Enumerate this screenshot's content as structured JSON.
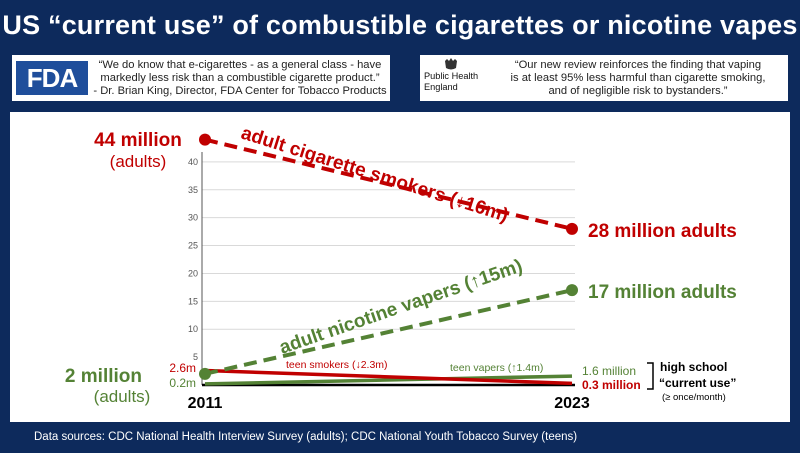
{
  "title": "US “current use” of combustible cigarettes or nicotine vapes",
  "quotes": {
    "fda": {
      "logo_text": "FDA",
      "line1": "“We do know that e-cigarettes - as a general class - have",
      "line2": "markedly less risk than a combustible cigarette product.”",
      "line3": "- Dr. Brian King, Director, FDA Center for Tobacco Products"
    },
    "phe": {
      "logo_line1": "Public Health",
      "logo_line2": "England",
      "line1": "“Our new review reinforces the finding that vaping",
      "line2": "is at least 95% less harmful than cigarette smoking,",
      "line3": "and of negligible risk to bystanders.”"
    }
  },
  "chart_data": {
    "type": "line",
    "x": [
      "2011",
      "2023"
    ],
    "ylim": [
      0,
      45
    ],
    "yticks": [
      5,
      10,
      15,
      20,
      25,
      30,
      35,
      40
    ],
    "grid": true,
    "series": [
      {
        "name": "adult cigarette smokers (↓16m)",
        "values": [
          44,
          28
        ],
        "color": "#c00000",
        "style": "dashed"
      },
      {
        "name": "adult nicotine vapers (↑15m)",
        "values": [
          2,
          17
        ],
        "color": "#548235",
        "style": "dashed"
      },
      {
        "name": "teen smokers (↓2.3m)",
        "values": [
          2.6,
          0.3
        ],
        "color": "#c00000",
        "style": "solid"
      },
      {
        "name": "teen vapers (↑1.4m)",
        "values": [
          0.2,
          1.6
        ],
        "color": "#548235",
        "style": "solid"
      }
    ],
    "labels": {
      "smokers_start_line1": "44 million",
      "smokers_start_line2": "(adults)",
      "smokers_end": "28 million adults",
      "vapers_start_line1": "2 million",
      "vapers_start_line2": "(adults)",
      "vapers_end": "17 million adults",
      "teen_smokers_start": "2.6m",
      "teen_vapers_start": "0.2m",
      "teen_vapers_end": "1.6 million",
      "teen_smokers_end": "0.3 million",
      "hs_line1": "high school",
      "hs_line2": "“current use”",
      "hs_line3": "(≥ once/month)"
    }
  },
  "footer": "Data sources:  CDC National Health Interview Survey (adults); CDC National Youth Tobacco Survey (teens)"
}
